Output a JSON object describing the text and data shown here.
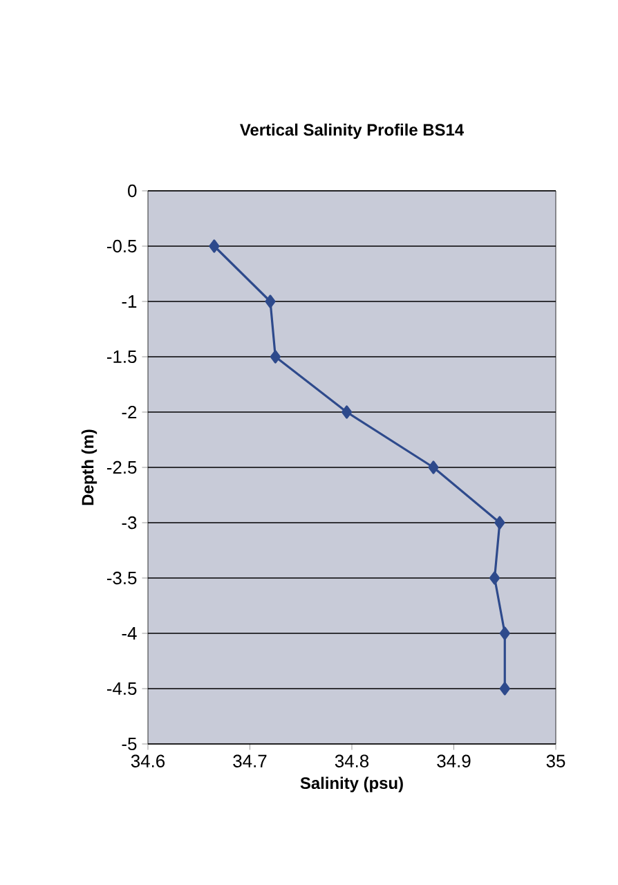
{
  "chart_data": {
    "type": "line",
    "title": "Vertical Salinity Profile BS14",
    "xlabel": "Salinity (psu)",
    "ylabel": "Depth (m)",
    "x": [
      34.665,
      34.72,
      34.725,
      34.795,
      34.88,
      34.945,
      34.94,
      34.95,
      34.95
    ],
    "values": [
      -0.5,
      -1,
      -1.5,
      -2,
      -2.5,
      -3,
      -3.5,
      -4,
      -4.5
    ],
    "color": "#2e4a8c",
    "marker": "diamond",
    "xlim": [
      34.6,
      35
    ],
    "xticks": [
      34.6,
      34.7,
      34.8,
      34.9,
      35
    ],
    "ylim": [
      -5,
      0
    ],
    "yticks": [
      -5,
      -4.5,
      -4,
      -3.5,
      -3,
      -2.5,
      -2,
      -1.5,
      -1,
      -0.5,
      0
    ],
    "grid": "y"
  }
}
